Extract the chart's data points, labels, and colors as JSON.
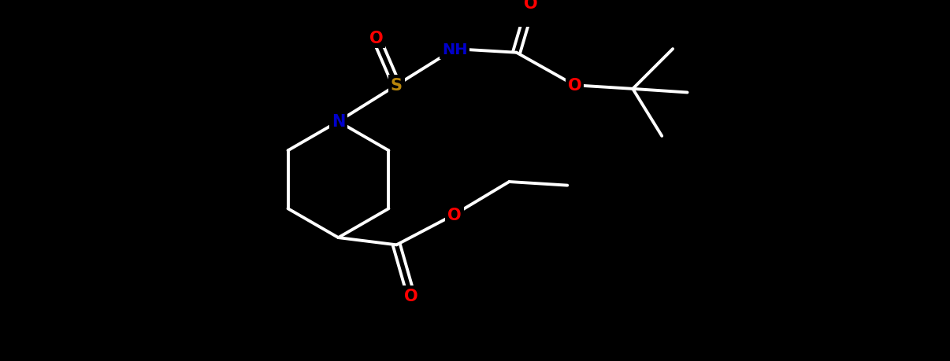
{
  "bg_color": "#000000",
  "bond_color": "#ffffff",
  "bond_width": 2.8,
  "atom_colors": {
    "O": "#ff0000",
    "N": "#0000cc",
    "S": "#b8860b",
    "C": "#000000",
    "H": "#000000"
  },
  "font_size": 15,
  "fig_width": 12.06,
  "fig_height": 4.6,
  "dpi": 100
}
